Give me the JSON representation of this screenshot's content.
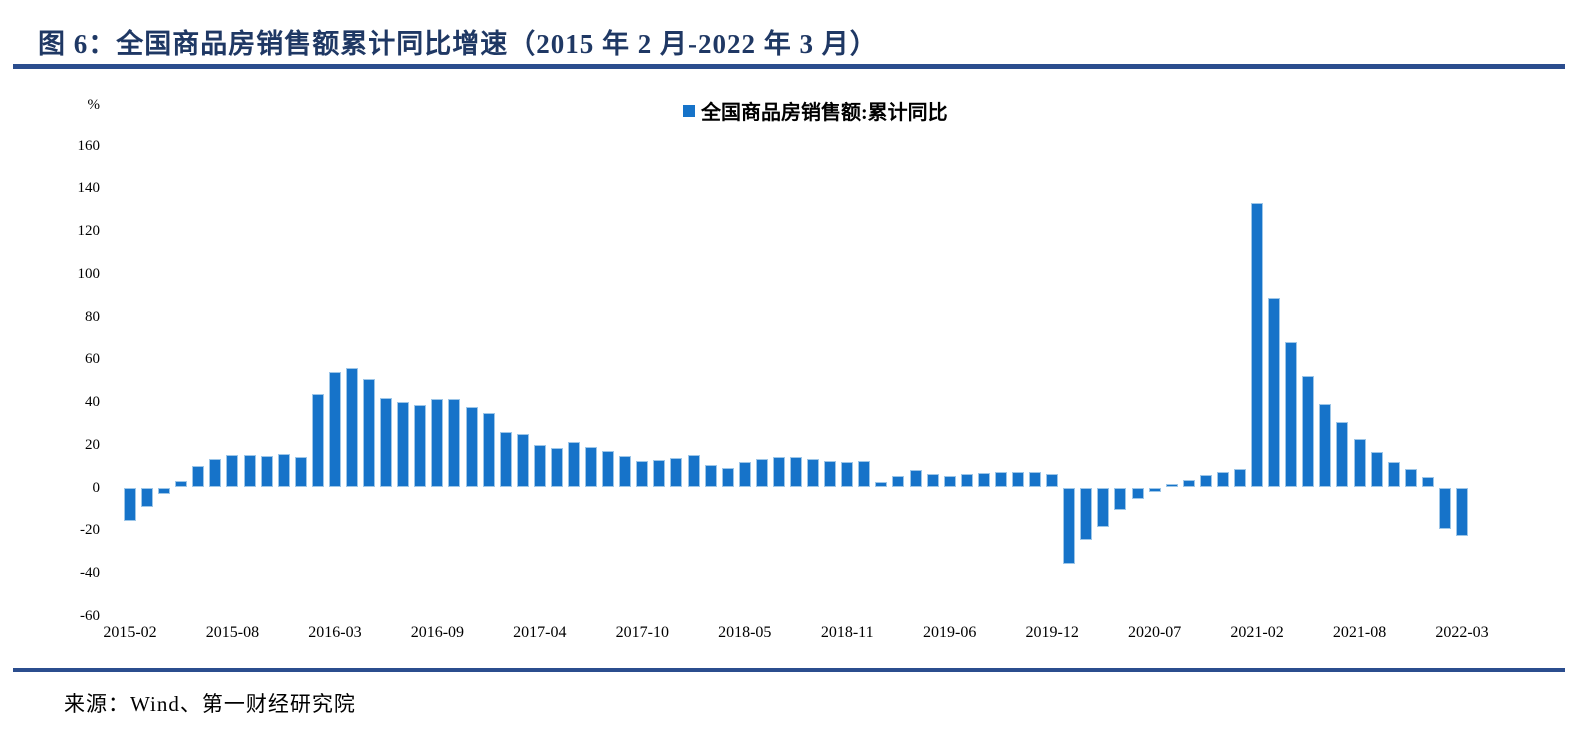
{
  "title": "图 6：全国商品房销售额累计同比增速（2015 年 2 月-2022 年 3 月）",
  "source": "来源：Wind、第一财经研究院",
  "colors": {
    "title_text": "#1f3864",
    "divider_rule": "#2b4d8e",
    "bar_fill": "#1673c9",
    "bar_edge": "#9dc6e8",
    "axis_text": "#000000"
  },
  "chart_data": {
    "type": "bar",
    "title": "全国商品房销售额累计同比增速（2015年2月-2022年3月）",
    "legend": "全国商品房销售额:累计同比",
    "unit": "%",
    "ylabel": "%",
    "xlabel": "",
    "ylim": [
      -60,
      160
    ],
    "grid": false,
    "legend_position": "top-center",
    "y_ticks": [
      160,
      140,
      120,
      100,
      80,
      60,
      40,
      20,
      0,
      -20,
      -40,
      -60
    ],
    "x_tick_step": 6,
    "x_tick_labels": [
      "2015-02",
      "2015-08",
      "2016-03",
      "2016-09",
      "2017-04",
      "2017-10",
      "2018-05",
      "2018-11",
      "2019-06",
      "2019-12",
      "2020-07",
      "2021-02",
      "2021-08",
      "2022-03"
    ],
    "categories": [
      "2015-02",
      "2015-03",
      "2015-04",
      "2015-05",
      "2015-06",
      "2015-07",
      "2015-08",
      "2015-09",
      "2015-10",
      "2015-11",
      "2015-12",
      "2016-02",
      "2016-03",
      "2016-04",
      "2016-05",
      "2016-06",
      "2016-07",
      "2016-08",
      "2016-09",
      "2016-10",
      "2016-11",
      "2016-12",
      "2017-02",
      "2017-03",
      "2017-04",
      "2017-05",
      "2017-06",
      "2017-07",
      "2017-08",
      "2017-09",
      "2017-10",
      "2017-11",
      "2017-12",
      "2018-02",
      "2018-03",
      "2018-04",
      "2018-05",
      "2018-06",
      "2018-07",
      "2018-08",
      "2018-09",
      "2018-10",
      "2018-11",
      "2018-12",
      "2019-02",
      "2019-03",
      "2019-04",
      "2019-05",
      "2019-06",
      "2019-07",
      "2019-08",
      "2019-09",
      "2019-10",
      "2019-11",
      "2019-12",
      "2020-02",
      "2020-03",
      "2020-04",
      "2020-05",
      "2020-06",
      "2020-07",
      "2020-08",
      "2020-09",
      "2020-10",
      "2020-11",
      "2020-12",
      "2021-02",
      "2021-03",
      "2021-04",
      "2021-05",
      "2021-06",
      "2021-07",
      "2021-08",
      "2021-09",
      "2021-10",
      "2021-11",
      "2021-12",
      "2022-02",
      "2022-03"
    ],
    "values": [
      -15.8,
      -9.3,
      -3.1,
      3.1,
      10.0,
      13.4,
      15.3,
      15.3,
      14.9,
      15.6,
      14.4,
      43.6,
      54.1,
      55.9,
      50.7,
      42.1,
      39.8,
      38.7,
      41.3,
      41.2,
      37.5,
      34.8,
      26.0,
      25.1,
      20.1,
      18.6,
      21.5,
      18.9,
      17.2,
      14.6,
      12.6,
      12.7,
      13.7,
      15.3,
      10.4,
      9.0,
      11.8,
      13.2,
      14.4,
      14.5,
      13.3,
      12.5,
      12.1,
      12.2,
      2.8,
      5.6,
      8.1,
      6.1,
      5.6,
      6.2,
      6.7,
      7.1,
      7.3,
      7.3,
      6.5,
      -35.9,
      -24.7,
      -18.6,
      -10.6,
      -5.4,
      -2.1,
      1.6,
      3.7,
      5.8,
      7.2,
      8.7,
      133.4,
      88.5,
      68.2,
      52.4,
      38.9,
      30.7,
      22.8,
      16.6,
      11.8,
      8.5,
      4.8,
      -19.3,
      -22.7
    ]
  }
}
